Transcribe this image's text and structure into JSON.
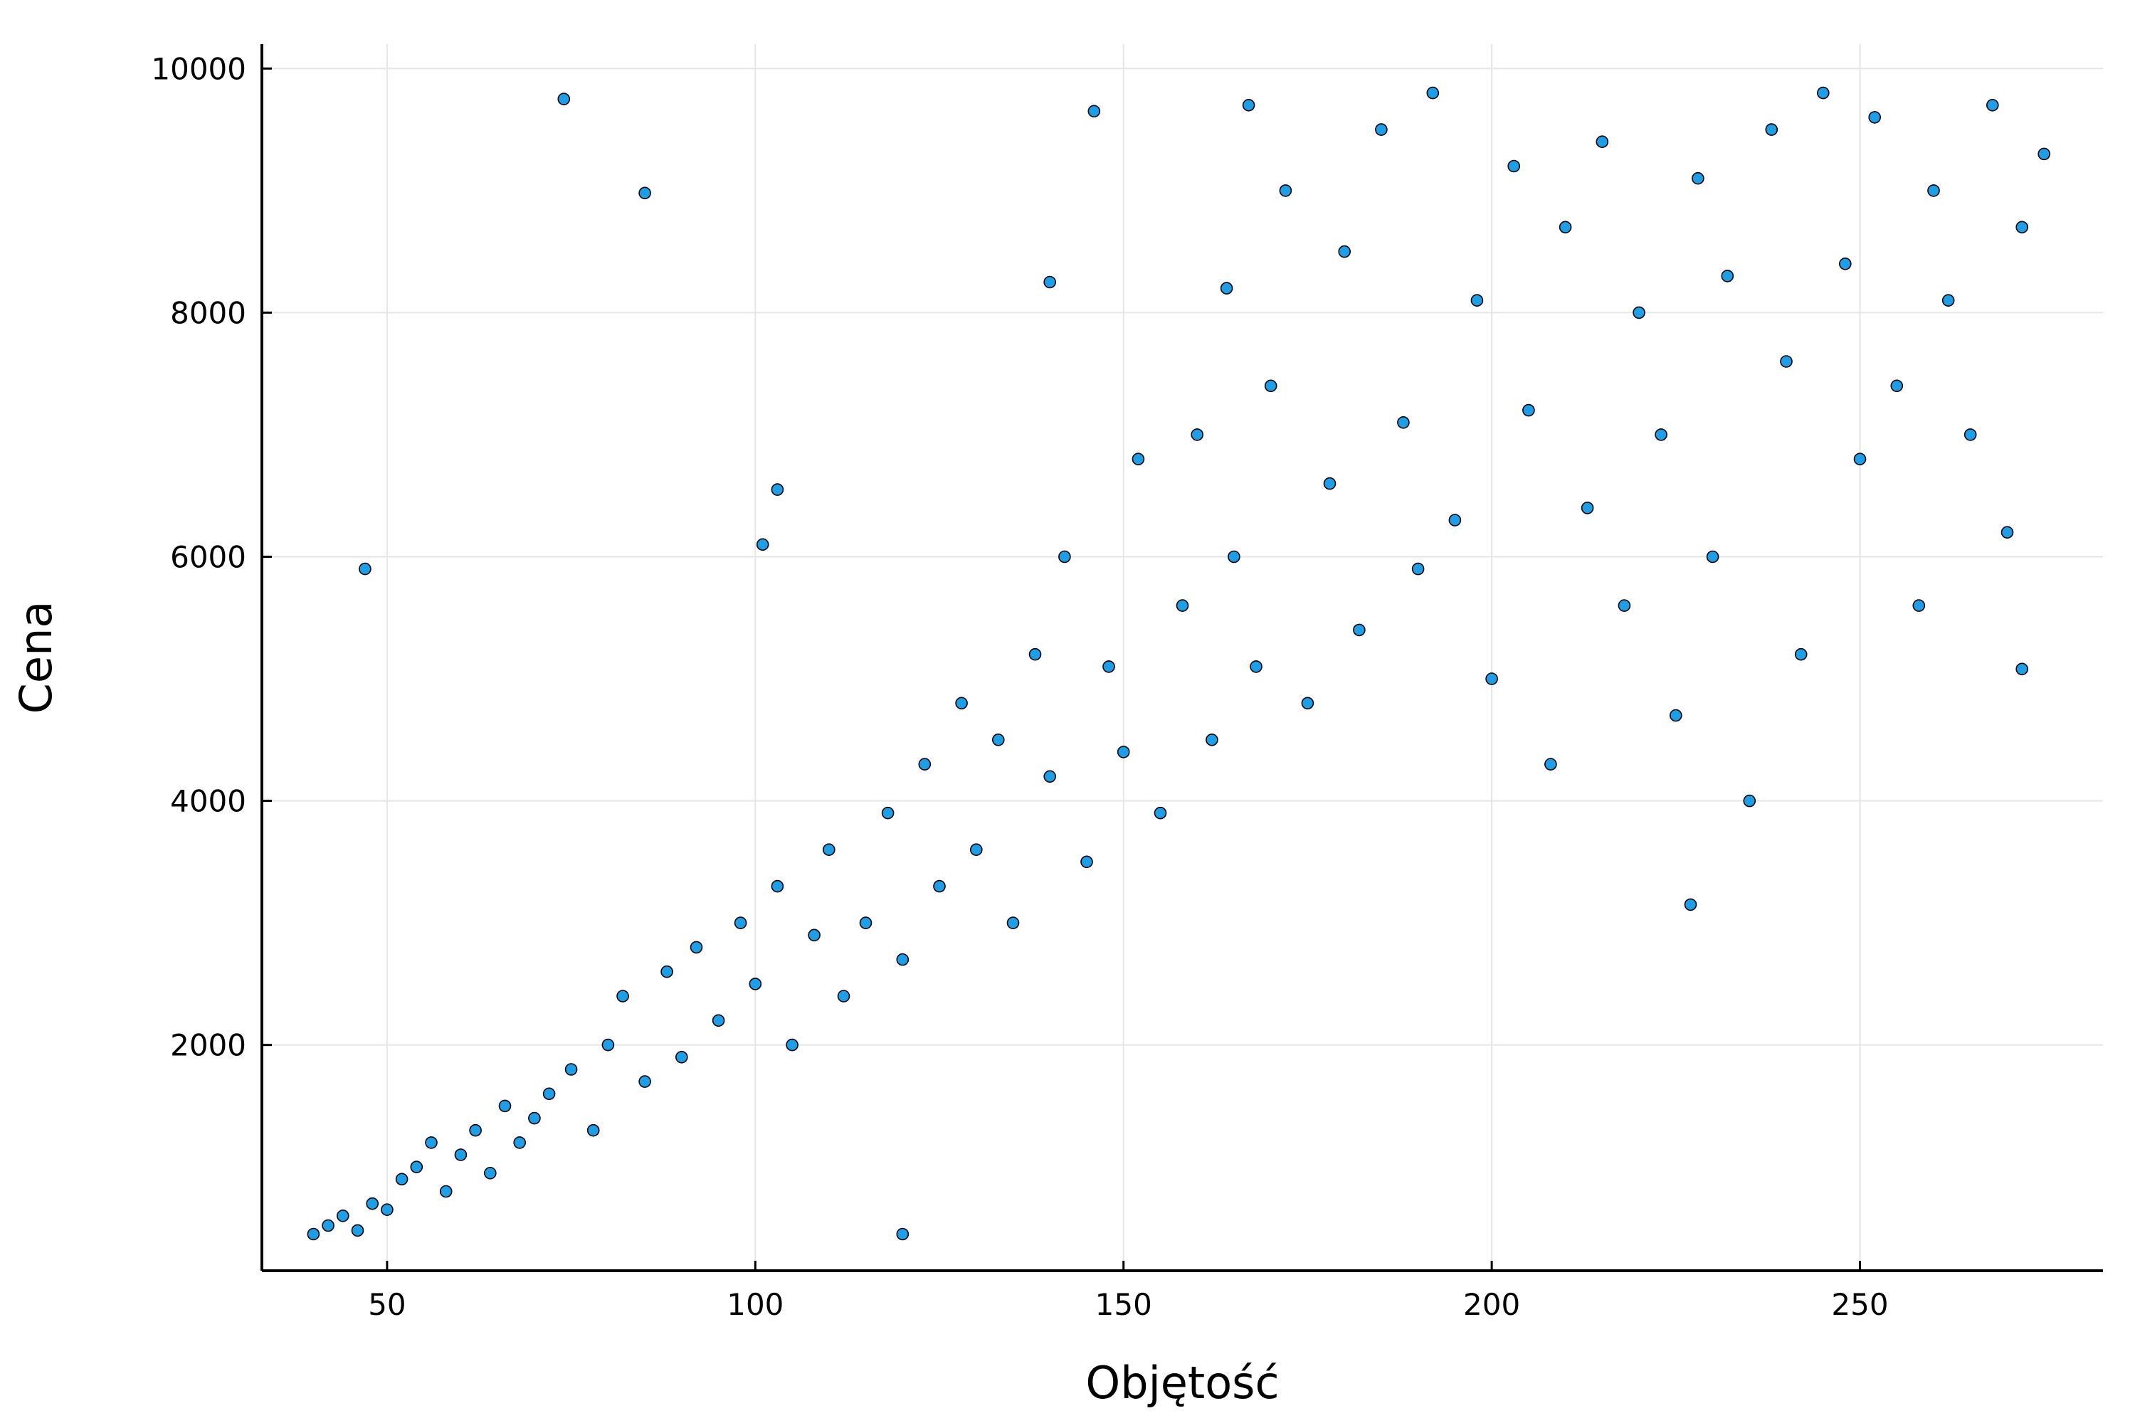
{
  "chart_data": {
    "type": "scatter",
    "title": "",
    "xlabel": "Objętość",
    "ylabel": "Cena",
    "xlim": [
      33,
      283
    ],
    "ylim": [
      150,
      10200
    ],
    "xticks": [
      50,
      100,
      150,
      200,
      250
    ],
    "yticks": [
      2000,
      4000,
      6000,
      8000,
      10000
    ],
    "xtick_labels": [
      "50",
      "100",
      "150",
      "200",
      "250"
    ],
    "ytick_labels": [
      "2000",
      "4000",
      "6000",
      "8000",
      "10000"
    ],
    "grid": true,
    "legend": "none",
    "marker_color": "#1f9ee8",
    "marker_edge_color": "#000000",
    "series": [
      {
        "values": [
          [
            40,
            450
          ],
          [
            42,
            520
          ],
          [
            44,
            600
          ],
          [
            46,
            480
          ],
          [
            48,
            700
          ],
          [
            50,
            650
          ],
          [
            52,
            900
          ],
          [
            54,
            1000
          ],
          [
            56,
            1200
          ],
          [
            58,
            800
          ],
          [
            60,
            1100
          ],
          [
            62,
            1300
          ],
          [
            64,
            950
          ],
          [
            66,
            1500
          ],
          [
            68,
            1200
          ],
          [
            70,
            1400
          ],
          [
            72,
            1600
          ],
          [
            75,
            1800
          ],
          [
            78,
            1300
          ],
          [
            80,
            2000
          ],
          [
            82,
            2400
          ],
          [
            85,
            1700
          ],
          [
            88,
            2600
          ],
          [
            90,
            1900
          ],
          [
            92,
            2800
          ],
          [
            95,
            2200
          ],
          [
            98,
            3000
          ],
          [
            100,
            2500
          ],
          [
            103,
            3300
          ],
          [
            105,
            2000
          ],
          [
            108,
            2900
          ],
          [
            110,
            3600
          ],
          [
            112,
            2400
          ],
          [
            115,
            3000
          ],
          [
            118,
            3900
          ],
          [
            120,
            2700
          ],
          [
            123,
            4300
          ],
          [
            125,
            3300
          ],
          [
            128,
            4800
          ],
          [
            130,
            3600
          ],
          [
            133,
            4500
          ],
          [
            135,
            3000
          ],
          [
            138,
            5200
          ],
          [
            140,
            4200
          ],
          [
            142,
            6000
          ],
          [
            145,
            3500
          ],
          [
            148,
            5100
          ],
          [
            150,
            4400
          ],
          [
            152,
            6800
          ],
          [
            155,
            3900
          ],
          [
            158,
            5600
          ],
          [
            160,
            7000
          ],
          [
            162,
            4500
          ],
          [
            164,
            8200
          ],
          [
            165,
            6000
          ],
          [
            167,
            9700
          ],
          [
            168,
            5100
          ],
          [
            170,
            7400
          ],
          [
            172,
            9000
          ],
          [
            175,
            4800
          ],
          [
            178,
            6600
          ],
          [
            180,
            8500
          ],
          [
            182,
            5400
          ],
          [
            185,
            9500
          ],
          [
            188,
            7100
          ],
          [
            190,
            5900
          ],
          [
            192,
            9800
          ],
          [
            195,
            6300
          ],
          [
            198,
            8100
          ],
          [
            200,
            5000
          ],
          [
            203,
            9200
          ],
          [
            205,
            7200
          ],
          [
            208,
            4300
          ],
          [
            210,
            8700
          ],
          [
            213,
            6400
          ],
          [
            215,
            9400
          ],
          [
            218,
            5600
          ],
          [
            220,
            8000
          ],
          [
            223,
            7000
          ],
          [
            225,
            4700
          ],
          [
            228,
            9100
          ],
          [
            230,
            6000
          ],
          [
            232,
            8300
          ],
          [
            235,
            4000
          ],
          [
            238,
            9500
          ],
          [
            240,
            7600
          ],
          [
            242,
            5200
          ],
          [
            245,
            9800
          ],
          [
            248,
            8400
          ],
          [
            250,
            6800
          ],
          [
            252,
            9600
          ],
          [
            255,
            7400
          ],
          [
            258,
            5600
          ],
          [
            260,
            9000
          ],
          [
            262,
            8100
          ],
          [
            265,
            7000
          ],
          [
            268,
            9700
          ],
          [
            270,
            6200
          ],
          [
            272,
            8700
          ],
          [
            275,
            9300
          ],
          [
            47,
            5900
          ],
          [
            74,
            9750
          ],
          [
            85,
            8980
          ],
          [
            101,
            6100
          ],
          [
            103,
            6550
          ],
          [
            140,
            8250
          ],
          [
            146,
            9650
          ],
          [
            120,
            450
          ],
          [
            227,
            3150
          ],
          [
            272,
            5080
          ]
        ]
      }
    ]
  }
}
